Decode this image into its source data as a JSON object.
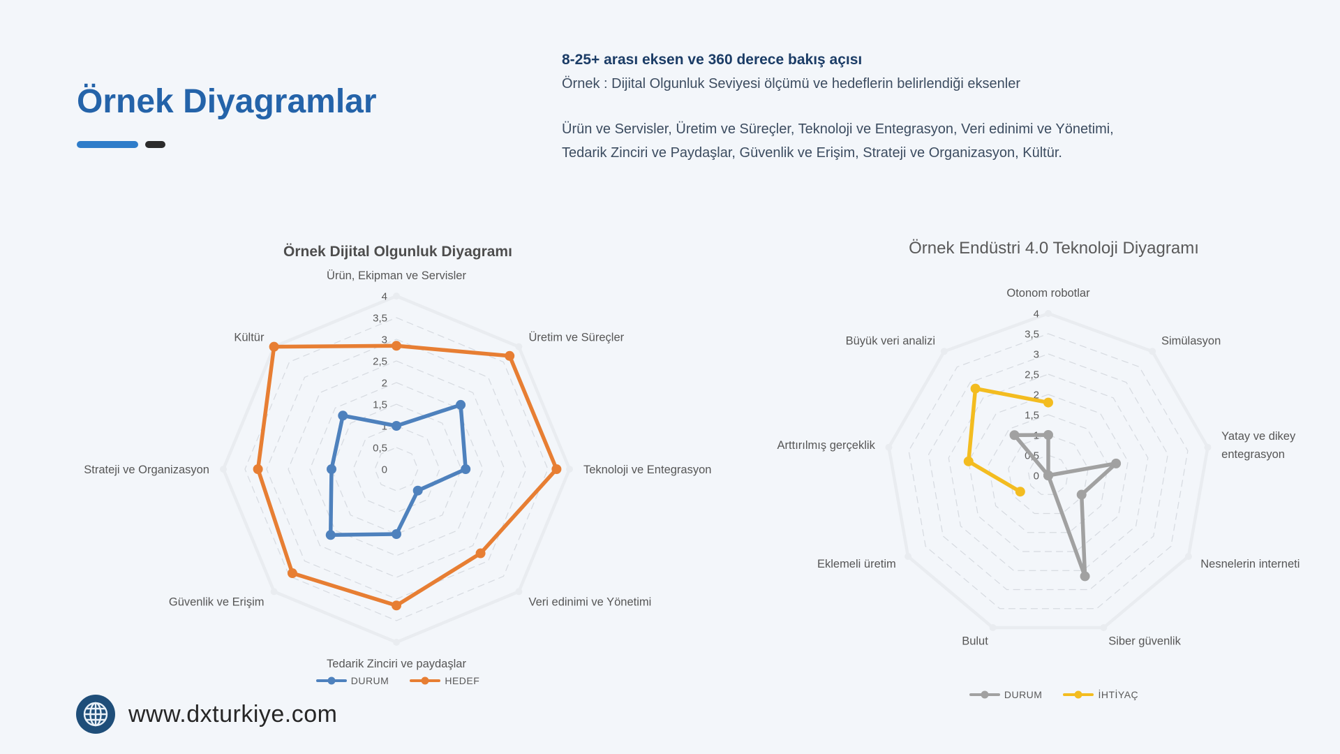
{
  "page": {
    "background": "#F3F6FA"
  },
  "header": {
    "title": "Örnek Diyagramlar",
    "accent_bars": {
      "blue": "#2E7CC9",
      "dark": "#2B2B2B"
    },
    "intro": {
      "heading": "8-25+ arası eksen ve 360 derece bakış açısı",
      "subtitle": "Örnek : Dijital Olgunluk Seviyesi ölçümü ve hedeflerin belirlendiği eksenler",
      "axes_line1": "Ürün ve Servisler, Üretim ve Süreçler, Teknoloji ve Entegrasyon, Veri edinimi ve Yönetimi,",
      "axes_line2": "Tedarik Zinciri ve Paydaşlar, Güvenlik ve Erişim, Strateji ve Organizasyon, Kültür."
    }
  },
  "footer": {
    "website": "www.dxturkiye.com",
    "globe_color": "#1F4E79"
  },
  "chart_data": [
    {
      "type": "radar",
      "title": "Örnek Dijital Olgunluk Diyagramı",
      "rmin": 0,
      "rmax": 4,
      "ring_step": 0.5,
      "grid": "on",
      "legend_position": "bottom",
      "axis_ticks": [
        "4",
        "3,5",
        "3",
        "2,5",
        "2",
        "1,5",
        "1",
        "0,5",
        "0"
      ],
      "categories": [
        "Ürün, Ekipman ve Servisler",
        "Üretim ve Süreçler",
        "Teknoloji ve Entegrasyon",
        "Veri edinimi ve Yönetimi",
        "Tedarik Zinciri ve paydaşlar",
        "Güvenlik ve Erişim",
        "Strateji ve Organizasyon",
        "Kültür"
      ],
      "series": [
        {
          "name": "DURUM",
          "color": "#4E81BD",
          "closed": true,
          "values": [
            1,
            2.1,
            1.6,
            0.7,
            1.5,
            2.15,
            1.5,
            1.75
          ]
        },
        {
          "name": "HEDEF",
          "color": "#E77E33",
          "closed": true,
          "values": [
            2.85,
            3.7,
            3.7,
            2.75,
            3.15,
            3.4,
            3.2,
            4
          ]
        }
      ]
    },
    {
      "type": "radar",
      "title": "Örnek Endüstri 4.0 Teknoloji Diyagramı",
      "rmin": 0,
      "rmax": 4,
      "ring_step": 0.5,
      "grid": "on",
      "legend_position": "bottom",
      "axis_ticks": [
        "4",
        "3,5",
        "3",
        "2,5",
        "2",
        "1,5",
        "1",
        "0,5",
        "0"
      ],
      "categories": [
        "Otonom robotlar",
        "Simülasyon",
        "Yatay ve dikey\nentegrasyon",
        "Nesnelerin interneti",
        "Siber güvenlik",
        "Bulut",
        "Eklemeli üretim",
        "Arttırılmış gerçeklik",
        "Büyük veri analizi"
      ],
      "series": [
        {
          "name": "DURUM",
          "color": "#A1A1A1",
          "closed": true,
          "values": [
            1,
            0,
            1.7,
            0.95,
            2.65,
            0,
            0,
            0,
            1.3
          ]
        },
        {
          "name": "İHTİYAÇ",
          "color": "#F3BC20",
          "closed": false,
          "values": [
            1.8,
            null,
            null,
            null,
            null,
            null,
            0.8,
            2,
            2.8
          ]
        }
      ]
    }
  ]
}
